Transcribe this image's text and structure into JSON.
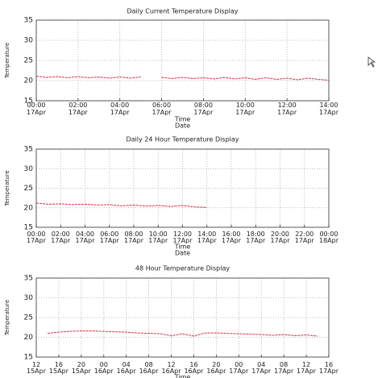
{
  "chart_data": [
    {
      "type": "line",
      "title": "Daily Current Temperature Display",
      "ylabel": "Temperature",
      "xlabel": "Time",
      "xlabel2": "Date",
      "xlim": [
        0,
        14
      ],
      "ylim": [
        15,
        35
      ],
      "yticks": [
        15,
        20,
        25,
        30,
        35
      ],
      "grid": true,
      "xticks": [
        {
          "value": 0,
          "label": "00:00 17Apr"
        },
        {
          "value": 2,
          "label": "02:00 17Apr"
        },
        {
          "value": 4,
          "label": "04:00 17Apr"
        },
        {
          "value": 6,
          "label": "06:00 17Apr"
        },
        {
          "value": 8,
          "label": "08:00 17Apr"
        },
        {
          "value": 10,
          "label": "10:00 17Apr"
        },
        {
          "value": 12,
          "label": "12:00 17Apr"
        },
        {
          "value": 14,
          "label": "14:00 17Apr"
        }
      ],
      "x": [
        0,
        0.5,
        1,
        1.5,
        2,
        2.5,
        3,
        3.5,
        4,
        4.5,
        5,
        5.5,
        6,
        6.5,
        7,
        7.5,
        8,
        8.5,
        9,
        9.5,
        10,
        10.5,
        11,
        11.5,
        12,
        12.5,
        13,
        13.5,
        14
      ],
      "series": [
        {
          "color": "#d9303c",
          "values": [
            21.1,
            20.8,
            21.0,
            20.7,
            21.0,
            20.7,
            20.9,
            20.6,
            20.9,
            20.6,
            20.9,
            null,
            20.8,
            20.5,
            20.8,
            20.5,
            20.7,
            20.4,
            20.8,
            20.4,
            20.7,
            20.3,
            20.7,
            20.3,
            20.6,
            20.2,
            20.6,
            20.3,
            20.1
          ]
        }
      ]
    },
    {
      "type": "line",
      "title": "Daily 24 Hour Temperature Display",
      "ylabel": "Temperature",
      "xlabel": "Time",
      "xlabel2": "Date",
      "xlim": [
        0,
        24
      ],
      "ylim": [
        15,
        35
      ],
      "yticks": [
        15,
        20,
        25,
        30,
        35
      ],
      "grid": true,
      "xticks": [
        {
          "value": 0,
          "label": "00:00 17Apr"
        },
        {
          "value": 2,
          "label": "02:00 17Apr"
        },
        {
          "value": 4,
          "label": "04:00 17Apr"
        },
        {
          "value": 6,
          "label": "06:00 17Apr"
        },
        {
          "value": 8,
          "label": "08:00 17Apr"
        },
        {
          "value": 10,
          "label": "10:00 17Apr"
        },
        {
          "value": 12,
          "label": "12:00 17Apr"
        },
        {
          "value": 14,
          "label": "14:00 17Apr"
        },
        {
          "value": 16,
          "label": "16:00 17Apr"
        },
        {
          "value": 18,
          "label": "18:00 17Apr"
        },
        {
          "value": 20,
          "label": "20:00 17Apr"
        },
        {
          "value": 22,
          "label": "22:00 17Apr"
        },
        {
          "value": 24,
          "label": "00:00 18Apr"
        }
      ],
      "x": [
        0,
        1,
        2,
        3,
        4,
        5,
        6,
        7,
        8,
        9,
        10,
        11,
        12,
        13,
        14
      ],
      "series": [
        {
          "color": "#d9303c",
          "values": [
            21.2,
            20.9,
            21.0,
            20.8,
            20.9,
            20.7,
            20.8,
            20.5,
            20.7,
            20.4,
            20.6,
            20.3,
            20.6,
            20.2,
            20.1
          ]
        }
      ]
    },
    {
      "type": "line",
      "title": "48 Hour Temperature Display",
      "ylabel": "Temperature",
      "xlabel": "Time",
      "xlim": [
        0,
        52
      ],
      "ylim": [
        15,
        35
      ],
      "yticks": [
        15,
        20,
        25,
        30,
        35
      ],
      "grid": true,
      "xticks": [
        {
          "value": 0,
          "label": "12 15Apr"
        },
        {
          "value": 4,
          "label": "16 15Apr"
        },
        {
          "value": 8,
          "label": "20 15Apr"
        },
        {
          "value": 12,
          "label": "00 16Apr"
        },
        {
          "value": 16,
          "label": "04 16Apr"
        },
        {
          "value": 20,
          "label": "08 16Apr"
        },
        {
          "value": 24,
          "label": "12 16Apr"
        },
        {
          "value": 28,
          "label": "16 16Apr"
        },
        {
          "value": 32,
          "label": "20 16Apr"
        },
        {
          "value": 36,
          "label": "00 17Apr"
        },
        {
          "value": 40,
          "label": "04 17Apr"
        },
        {
          "value": 44,
          "label": "08 17Apr"
        },
        {
          "value": 48,
          "label": "12 17Apr"
        },
        {
          "value": 52,
          "label": "16 17Apr"
        }
      ],
      "x": [
        2,
        4,
        6,
        8,
        10,
        12,
        14,
        16,
        18,
        20,
        22,
        24,
        26,
        28,
        30,
        32,
        34,
        36,
        38,
        40,
        42,
        44,
        46,
        48,
        50
      ],
      "series": [
        {
          "color": "#d9303c",
          "values": [
            21.0,
            21.3,
            21.5,
            21.6,
            21.6,
            21.5,
            21.4,
            21.3,
            21.1,
            21.0,
            20.9,
            20.4,
            20.9,
            20.3,
            21.1,
            21.1,
            21.0,
            20.9,
            20.8,
            20.7,
            20.5,
            20.7,
            20.4,
            20.6,
            20.3
          ]
        }
      ]
    }
  ]
}
